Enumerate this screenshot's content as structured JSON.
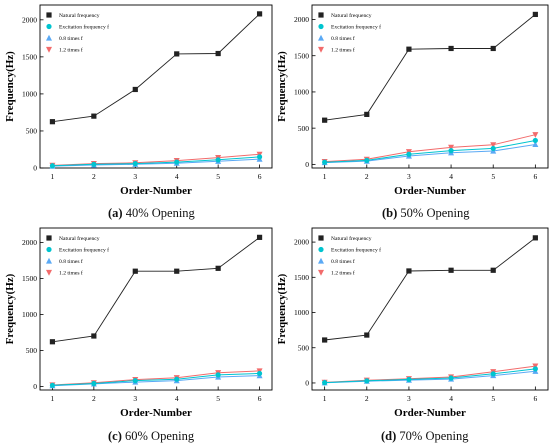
{
  "legend_labels": [
    "Natural frequency",
    "Excitation frequency f",
    "0.8 times f",
    "1.2 times f"
  ],
  "colors": {
    "natural": "#222222",
    "excitation": "#00c4cf",
    "times_0_8": "#5aa9f5",
    "times_1_2": "#f26b6b"
  },
  "captions": [
    {
      "letter": "(a)",
      "text": " 40% Opening"
    },
    {
      "letter": "(b)",
      "text": " 50% Opening"
    },
    {
      "letter": "(c)",
      "text": " 60% Opening"
    },
    {
      "letter": "(d)",
      "text": " 70% Opening"
    }
  ],
  "chart_data": [
    {
      "type": "line",
      "xlabel": "Order-Number",
      "ylabel": "Frequency(Hz)",
      "x": [
        1,
        2,
        3,
        4,
        5,
        6
      ],
      "xlim": [
        0.7,
        6.3
      ],
      "ylim": [
        0,
        2200
      ],
      "yticks": [
        0,
        500,
        1000,
        1500,
        2000
      ],
      "legend_position": "top-left",
      "series": [
        {
          "name": "Natural frequency",
          "values": [
            625,
            700,
            1060,
            1540,
            1545,
            2080
          ]
        },
        {
          "name": "Excitation frequency f",
          "values": [
            30,
            50,
            60,
            80,
            110,
            150
          ]
        },
        {
          "name": "0.8 times f",
          "values": [
            25,
            40,
            50,
            65,
            90,
            120
          ]
        },
        {
          "name": "1.2 times f",
          "values": [
            35,
            60,
            70,
            100,
            140,
            185
          ]
        }
      ]
    },
    {
      "type": "line",
      "xlabel": "Order-Number",
      "ylabel": "Frequency(Hz)",
      "x": [
        1,
        2,
        3,
        4,
        5,
        6
      ],
      "xlim": [
        0.7,
        6.3
      ],
      "ylim": [
        -50,
        2200
      ],
      "yticks": [
        0,
        500,
        1000,
        1500,
        2000
      ],
      "legend_position": "top-left",
      "series": [
        {
          "name": "Natural frequency",
          "values": [
            610,
            690,
            1590,
            1600,
            1600,
            2070
          ]
        },
        {
          "name": "Excitation frequency f",
          "values": [
            30,
            55,
            140,
            190,
            220,
            330
          ]
        },
        {
          "name": "0.8 times f",
          "values": [
            25,
            45,
            115,
            160,
            185,
            275
          ]
        },
        {
          "name": "1.2 times f",
          "values": [
            38,
            70,
            175,
            235,
            270,
            410
          ]
        }
      ]
    },
    {
      "type": "line",
      "xlabel": "Order-Number",
      "ylabel": "Frequency(Hz)",
      "x": [
        1,
        2,
        3,
        4,
        5,
        6
      ],
      "xlim": [
        0.7,
        6.3
      ],
      "ylim": [
        -50,
        2200
      ],
      "yticks": [
        0,
        500,
        1000,
        1500,
        2000
      ],
      "legend_position": "top-left",
      "series": [
        {
          "name": "Natural frequency",
          "values": [
            620,
            700,
            1600,
            1600,
            1640,
            2070
          ]
        },
        {
          "name": "Excitation frequency f",
          "values": [
            15,
            40,
            80,
            100,
            160,
            180
          ]
        },
        {
          "name": "0.8 times f",
          "values": [
            10,
            35,
            60,
            80,
            130,
            150
          ]
        },
        {
          "name": "1.2 times f",
          "values": [
            20,
            50,
            95,
            120,
            190,
            215
          ]
        }
      ]
    },
    {
      "type": "line",
      "xlabel": "Order-Number",
      "ylabel": "Frequency(Hz)",
      "x": [
        1,
        2,
        3,
        4,
        5,
        6
      ],
      "xlim": [
        0.7,
        6.3
      ],
      "ylim": [
        -100,
        2200
      ],
      "yticks": [
        0,
        500,
        1000,
        1500,
        2000
      ],
      "legend_position": "top-left",
      "series": [
        {
          "name": "Natural frequency",
          "values": [
            610,
            680,
            1590,
            1600,
            1600,
            2060
          ]
        },
        {
          "name": "Excitation frequency f",
          "values": [
            5,
            30,
            50,
            70,
            130,
            200
          ]
        },
        {
          "name": "0.8 times f",
          "values": [
            3,
            25,
            40,
            55,
            105,
            165
          ]
        },
        {
          "name": "1.2 times f",
          "values": [
            8,
            38,
            60,
            85,
            160,
            240
          ]
        }
      ]
    }
  ]
}
